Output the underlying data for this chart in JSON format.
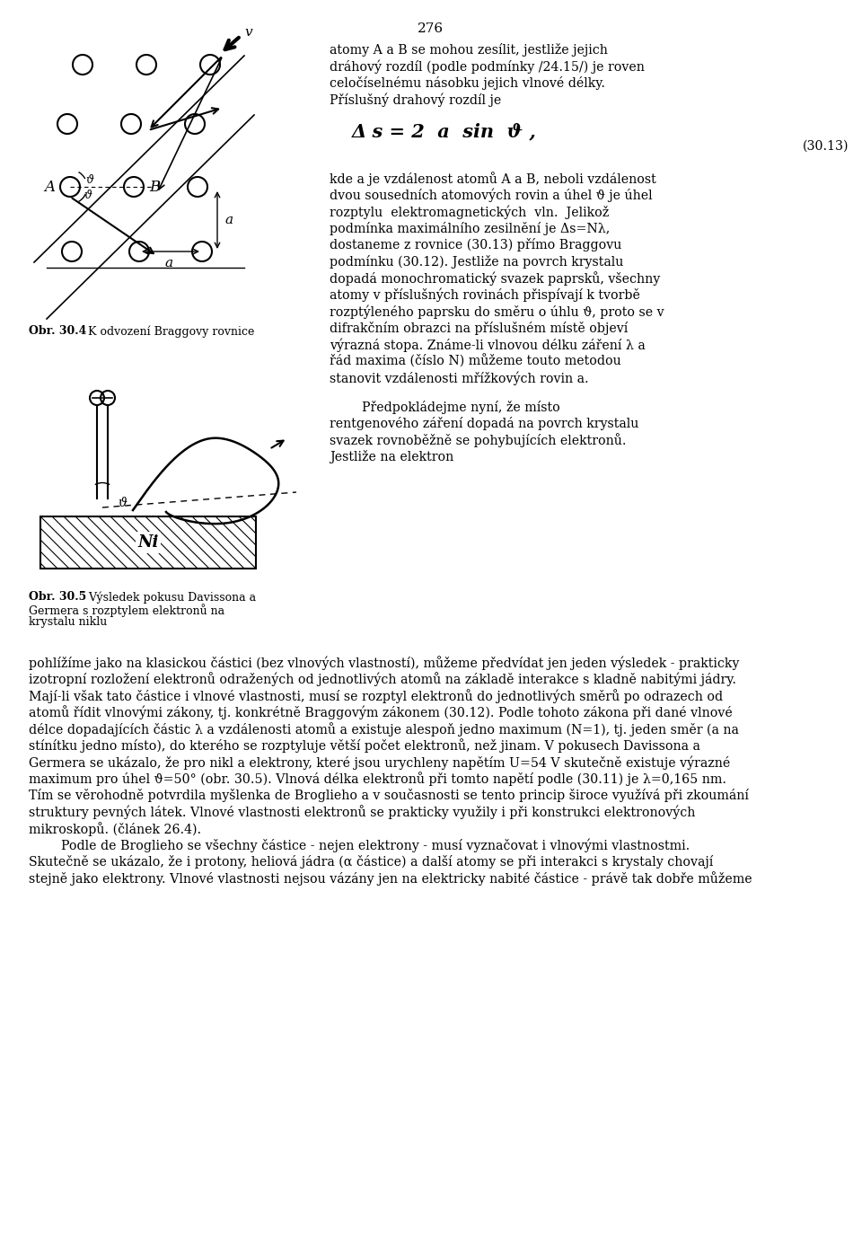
{
  "page_number": "276",
  "bg_color": "#ffffff",
  "text_color": "#000000",
  "fig_width": 9.6,
  "fig_height": 13.75,
  "right_text_lines": [
    "atomy A a B se mohou zesílit, jestliže jejich",
    "dráhový rozdíl (podle podmínky /24.15/) je roven",
    "celočíselnému násobku jejich vlnové délky.",
    "Příslušný drahový rozdíl je"
  ],
  "eq_number": "(30.13)",
  "right_text2": [
    "kde a je vzdálenost atomů A a B, neboli vzdálenost",
    "dvou sousedních atomových rovin a úhel ϑ je úhel",
    "rozptylu  elektromagnetických  vln.  Jelikož",
    "podmínka maximálního zesilnění je Δs=Nλ,",
    "dostaneme z rovnice (30.13) přímo Braggovu",
    "podmínku (30.12). Jestliže na povrch krystalu",
    "dopadá monochromatický svazek paprsků, všechny",
    "atomy v příslušných rovinách přispívají k tvorbě",
    "rozptýleného paprsku do směru o úhlu ϑ, proto se v",
    "difrakčním obrazci na příslušném místě objeví",
    "výrazná stopa. Známe-li vlnovou délku záření λ a",
    "řád maxima (číslo N) můžeme touto metodou",
    "stanovit vzdálenosti mřížkových rovin a."
  ],
  "right_text3": [
    "        Předpokládejme nyní, že místo",
    "rentgenového záření dopadá na povrch krystalu",
    "svazek rovnoběžně se pohybujících elektronů.",
    "Jestliže na elektron"
  ],
  "bottom_text": [
    "pohlížíme jako na klasickou částici (bez vlnových vlastností), můžeme předvídat jen jeden výsledek - prakticky",
    "izotropní rozložení elektronů odražených od jednotlivých atomů na základě interakce s kladně nabitými jádry.",
    "Mají-li však tato částice i vlnové vlastnosti, musí se rozptyl elektronů do jednotlivých směrů po odrazech od",
    "atomů řídit vlnovými zákony, tj. konkrétně Braggovým zákonem (30.12). Podle tohoto zákona při dané vlnové",
    "délce dopadajících částic λ a vzdálenosti atomů a existuje alespoň jedno maximum (N=1), tj. jeden směr (a na",
    "stínítku jedno místo), do kterého se rozptyluje větší počet elektronů, než jinam. V pokusech Davissona a",
    "Germera se ukázalo, že pro nikl a elektrony, které jsou urychleny napětím U=54 V skutečně existuje výrazné",
    "maximum pro úhel ϑ=50° (obr. 30.5). Vlnová délka elektronů při tomto napětí podle (30.11) je λ=0,165 nm.",
    "Tím se věrohodně potvrdila myšlenka de Broglieho a v současnosti se tento princip široce využívá při zkoumání",
    "struktury pevných látek. Vlnové vlastnosti elektronů se prakticky využily i při konstrukci elektronových",
    "mikroskopů. (článek 26.4).",
    "        Podle de Broglieho se všechny částice - nejen elektrony - musí vyznačovat i vlnovými vlastnostmi.",
    "Skutečně se ukázalo, že i protony, heliová jádra (α částice) a další atomy se při interakci s krystaly chovají",
    "stejně jako elektrony. Vlnové vlastnosti nejsou vázány jen na elektricky nabité částice - právě tak dobře můžeme"
  ]
}
